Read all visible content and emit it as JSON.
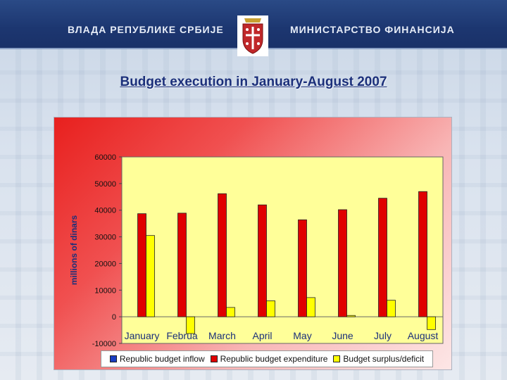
{
  "header": {
    "left_text": "ВЛАДА РЕПУБЛИКЕ СРБИЈЕ",
    "right_text": "МИНИСТАРСТВО ФИНАНСИЈА"
  },
  "colors": {
    "inflow": "#1a3ec2",
    "expenditure": "#e00000",
    "surplus": "#ffff00"
  },
  "chart_data": {
    "type": "bar",
    "title": "Budget execution in January-August 2007",
    "ylabel": "millions of dinars",
    "xlabel": "",
    "ylim": [
      -10000,
      60000
    ],
    "yticks": [
      "60000",
      "50000",
      "40000",
      "30000",
      "20000",
      "10000",
      "0",
      "-10000"
    ],
    "categories": [
      "January",
      "Februa",
      "March",
      "April",
      "May",
      "June",
      "July",
      "August"
    ],
    "grid": false,
    "legend_position": "bottom",
    "series": [
      {
        "name": "Republic budget inflow",
        "values": [
          0,
          0,
          0,
          0,
          0,
          0,
          0,
          0
        ]
      },
      {
        "name": "Republic budget expenditure",
        "values": [
          38700,
          38900,
          46200,
          42000,
          36400,
          40200,
          44500,
          47000
        ]
      },
      {
        "name": "Budget surplus/deficit",
        "values": [
          30500,
          -6300,
          3500,
          6000,
          7200,
          500,
          6200,
          -4800
        ]
      }
    ]
  }
}
